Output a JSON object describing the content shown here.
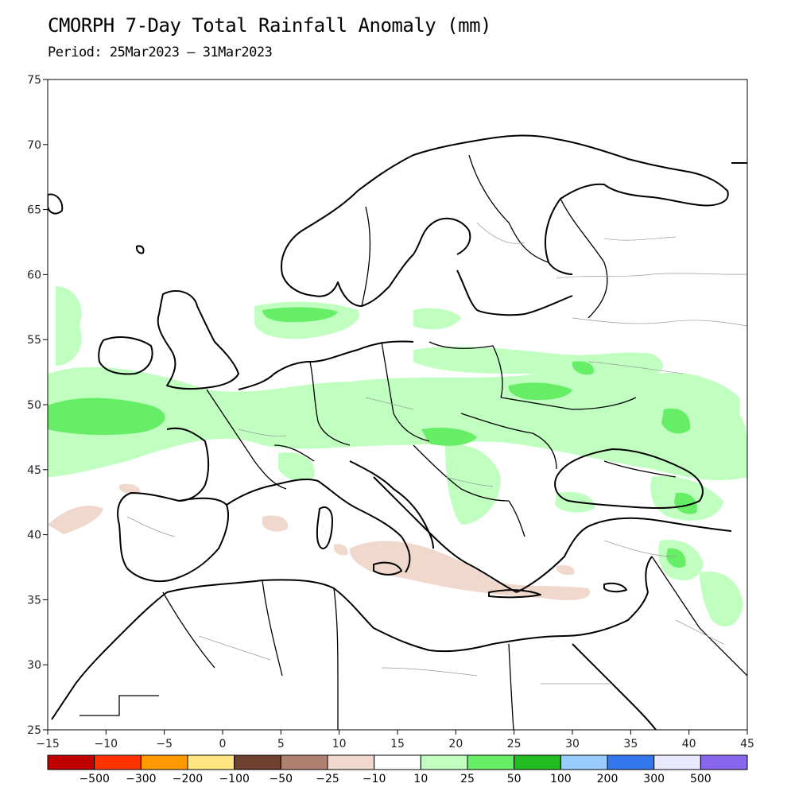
{
  "title": "CMORPH 7-Day Total Rainfall Anomaly (mm)",
  "subtitle": "Period: 25Mar2023 – 31Mar2023",
  "map": {
    "lon_range": [
      -15,
      45
    ],
    "lat_range": [
      25,
      75
    ],
    "lon_ticks": [
      "-15",
      "-10",
      "-5",
      "0",
      "5",
      "10",
      "15",
      "20",
      "25",
      "30",
      "35",
      "40",
      "45"
    ],
    "lat_ticks": [
      "25",
      "30",
      "35",
      "40",
      "45",
      "50",
      "55",
      "60",
      "65",
      "70",
      "75"
    ],
    "ocean_color": "#ffffff",
    "coastline_color": "#000000",
    "border_color": "#888888"
  },
  "colorbar": {
    "colors": [
      "#c00000",
      "#ff3300",
      "#ff9900",
      "#ffe680",
      "#704030",
      "#b08070",
      "#f0d8cc",
      "#ffffff",
      "#c0ffc0",
      "#66ee66",
      "#22bb22",
      "#99ccff",
      "#3377ee",
      "#e8e8ff",
      "#8866ee"
    ],
    "labels": [
      "-500",
      "-300",
      "-200",
      "-100",
      "-50",
      "-25",
      "-10",
      "10",
      "25",
      "50",
      "100",
      "200",
      "300",
      "500"
    ]
  }
}
